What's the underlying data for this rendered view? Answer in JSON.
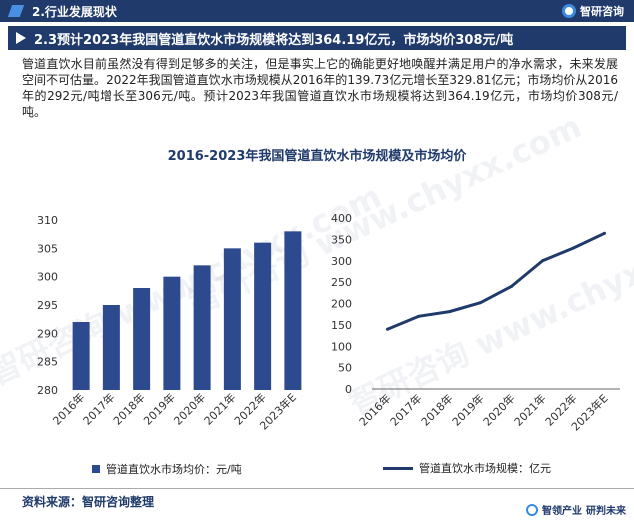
{
  "header": {
    "title": "2.行业发展现状",
    "brand": "智研咨询"
  },
  "section": {
    "title": "2.3预计2023年我国管道直饮水市场规模将达到364.19亿元，市场均价308元/吨"
  },
  "paragraph": "管道直饮水目前虽然没有得到足够多的关注，但是事实上它的确能更好地唤醒并满足用户的净水需求，未来发展空间不可估量。2022年我国管道直饮水市场规模从2016年的139.73亿元增长至329.81亿元；市场均价从2016年的292元/吨增长至306元/吨。预计2023年我国管道直饮水市场规模将达到364.19亿元，市场均价308元/吨。",
  "chart_title": "2016-2023年我国管道直饮水市场规模及市场均价",
  "watermark": "智研咨询 www.chyxx.com",
  "colors": {
    "navy": "#1f3a6b",
    "bar": "#2e4a8f",
    "accent": "#3a8be0"
  },
  "chart_data": [
    {
      "type": "bar",
      "categories": [
        "2016年",
        "2017年",
        "2018年",
        "2019年",
        "2020年",
        "2021年",
        "2022年",
        "2023年E"
      ],
      "series": [
        {
          "name": "管道直饮水市场均价：元/吨",
          "values": [
            292,
            295,
            298,
            300,
            302,
            305,
            306,
            308
          ]
        }
      ],
      "ylim": [
        280,
        310
      ],
      "yticks": [
        280,
        285,
        290,
        295,
        300,
        305,
        310
      ],
      "grid": false,
      "legend": "bottom"
    },
    {
      "type": "line",
      "categories": [
        "2016年",
        "2017年",
        "2018年",
        "2019年",
        "2020年",
        "2021年",
        "2022年",
        "2023年E"
      ],
      "series": [
        {
          "name": "管道直饮水市场规模：亿元",
          "values": [
            139.73,
            170,
            181,
            202,
            240,
            300,
            329.81,
            364.19
          ]
        }
      ],
      "ylim": [
        0,
        400
      ],
      "yticks": [
        0,
        50,
        100,
        150,
        200,
        250,
        300,
        350,
        400
      ],
      "grid": false,
      "legend": "bottom"
    }
  ],
  "source": "资料来源：智研咨询整理",
  "footer": {
    "brand": "智领产业",
    "slogan": "研判未来"
  }
}
